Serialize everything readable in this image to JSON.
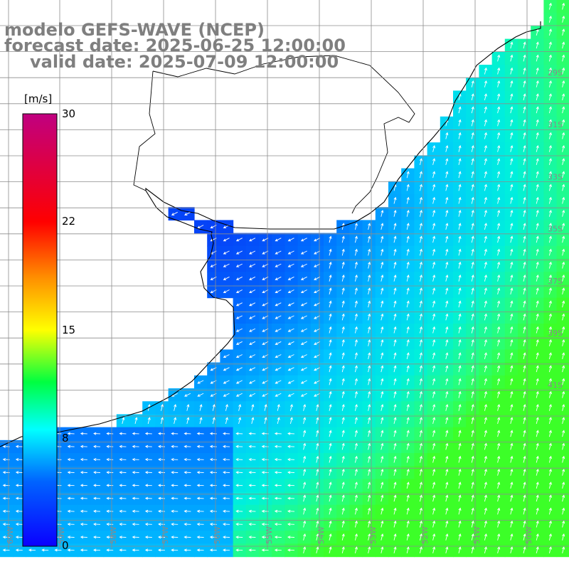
{
  "header": {
    "model_line": "modelo GEFS-WAVE (NCEP)",
    "forecast_line": "forecast date: 2025-06-25 12:00:00",
    "valid_line": "valid date: 2025-07-09 12:00:00"
  },
  "colorbar": {
    "unit_label": "[m/s]",
    "ticks": [
      "30",
      "22",
      "15",
      "8",
      "0"
    ],
    "min": 0,
    "max": 30
  },
  "map": {
    "lon_labels": [
      "60W",
      "59W",
      "58W",
      "57W",
      "56W",
      "55W",
      "54W",
      "53W",
      "52W",
      "51W",
      "50W"
    ],
    "lat_labels": [
      "29S",
      "31S",
      "33S",
      "35S",
      "37S",
      "39S",
      "41S"
    ],
    "colors": {
      "land": "#ffffff",
      "coast": "#000000",
      "grid": "#8c8c8c",
      "arrow": "#ffffff",
      "title": "#7f7f7f"
    }
  }
}
